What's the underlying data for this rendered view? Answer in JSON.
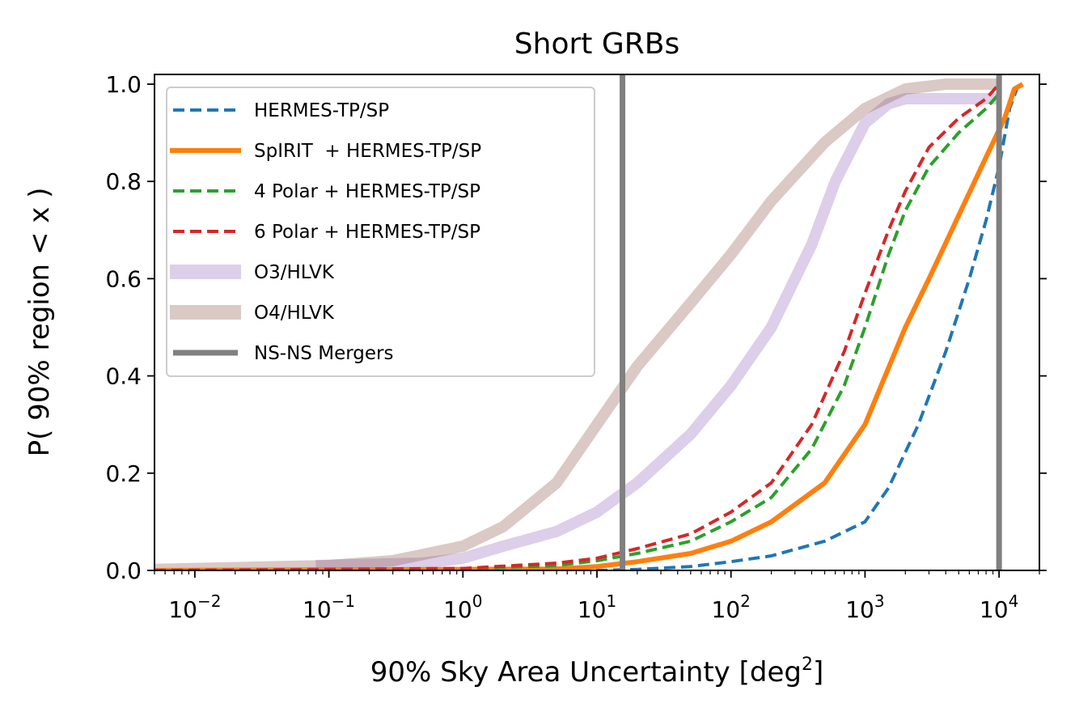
{
  "chart_data": {
    "type": "line",
    "title": "Short GRBs",
    "xlabel": "90% Sky Area Uncertainty [deg",
    "xlabel_sup": "2",
    "xlabel_end": "]",
    "ylabel": "P( 90% region < x )",
    "xscale": "log",
    "xlim": [
      0.005,
      20000
    ],
    "ylim": [
      0.0,
      1.02
    ],
    "x_ticks": [
      {
        "base": "10",
        "exp": "−2"
      },
      {
        "base": "10",
        "exp": "−1"
      },
      {
        "base": "10",
        "exp": "0"
      },
      {
        "base": "10",
        "exp": "1"
      },
      {
        "base": "10",
        "exp": "2"
      },
      {
        "base": "10",
        "exp": "3"
      },
      {
        "base": "10",
        "exp": "4"
      }
    ],
    "y_ticks": [
      "0.0",
      "0.2",
      "0.4",
      "0.6",
      "0.8",
      "1.0"
    ],
    "legend_position": "upper-left",
    "series": [
      {
        "name": "HERMES-TP/SP",
        "color": "#1f77b4",
        "style": "dashed",
        "x": [
          0.005,
          10,
          20,
          50,
          100,
          200,
          500,
          1000,
          1500,
          2500,
          4000,
          6000,
          8000,
          10000,
          12000,
          14000
        ],
        "y": [
          0.0,
          0.0,
          0.002,
          0.008,
          0.018,
          0.03,
          0.06,
          0.1,
          0.17,
          0.3,
          0.45,
          0.6,
          0.72,
          0.83,
          0.95,
          1.0
        ]
      },
      {
        "name": "SpIRIT  + HERMES-TP/SP",
        "color": "#ff7f0e",
        "style": "solid",
        "x": [
          0.005,
          5,
          10,
          20,
          50,
          100,
          200,
          500,
          1000,
          2000,
          3000,
          5000,
          8000,
          11000,
          13000,
          15000
        ],
        "y": [
          0.0,
          0.003,
          0.008,
          0.018,
          0.035,
          0.06,
          0.1,
          0.18,
          0.3,
          0.5,
          0.6,
          0.73,
          0.85,
          0.93,
          0.99,
          1.0
        ]
      },
      {
        "name": "4 Polar + HERMES-TP/SP",
        "color": "#2ca02c",
        "style": "dashed",
        "x": [
          0.005,
          1,
          5,
          10,
          20,
          50,
          100,
          200,
          400,
          700,
          1000,
          1500,
          2000,
          3000,
          5000,
          8000,
          10000
        ],
        "y": [
          0.0,
          0.003,
          0.01,
          0.02,
          0.035,
          0.06,
          0.1,
          0.15,
          0.25,
          0.38,
          0.5,
          0.65,
          0.74,
          0.83,
          0.9,
          0.95,
          0.98
        ]
      },
      {
        "name": "6 Polar + HERMES-TP/SP",
        "color": "#d62728",
        "style": "dashed",
        "x": [
          0.005,
          1,
          5,
          10,
          20,
          50,
          100,
          200,
          400,
          700,
          1000,
          1500,
          2000,
          3000,
          5000,
          8000,
          10000
        ],
        "y": [
          0.0,
          0.004,
          0.015,
          0.025,
          0.045,
          0.075,
          0.12,
          0.18,
          0.3,
          0.45,
          0.57,
          0.7,
          0.78,
          0.87,
          0.93,
          0.97,
          1.0
        ]
      },
      {
        "name": "O3/HLVK",
        "color": "#9467bd",
        "style": "band",
        "x": [
          0.08,
          0.5,
          1,
          2,
          5,
          10,
          20,
          50,
          100,
          200,
          400,
          600,
          1000,
          1500,
          2000,
          4000,
          10000
        ],
        "y": [
          0.01,
          0.015,
          0.025,
          0.05,
          0.08,
          0.12,
          0.18,
          0.28,
          0.38,
          0.5,
          0.67,
          0.8,
          0.92,
          0.96,
          0.97,
          0.97,
          0.97
        ]
      },
      {
        "name": "O4/HLVK",
        "color": "#8c564b",
        "style": "band",
        "x": [
          0.005,
          0.1,
          0.3,
          1,
          2,
          5,
          10,
          20,
          50,
          100,
          200,
          500,
          1000,
          2000,
          4000,
          10000
        ],
        "y": [
          0.002,
          0.01,
          0.02,
          0.05,
          0.09,
          0.18,
          0.3,
          0.42,
          0.55,
          0.65,
          0.76,
          0.88,
          0.95,
          0.99,
          1.0,
          1.0
        ]
      },
      {
        "name": "NS-NS Mergers",
        "color": "#808080",
        "style": "vline",
        "x": [
          15.5,
          10000
        ]
      }
    ]
  }
}
